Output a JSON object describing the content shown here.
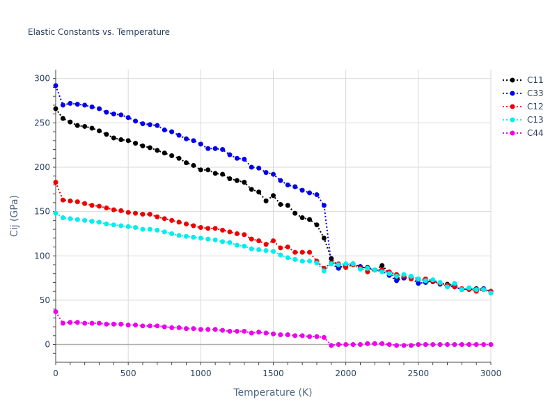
{
  "chart_data": {
    "type": "line",
    "title": "Elastic Constants vs. Temperature",
    "xlabel": "Temperature (K)",
    "ylabel": "Cij (GPa)",
    "xlim": [
      0,
      3000
    ],
    "ylim": [
      -20,
      310
    ],
    "x_ticks": [
      0,
      500,
      1000,
      1500,
      2000,
      2500,
      3000
    ],
    "y_ticks": [
      0,
      50,
      100,
      150,
      200,
      250,
      300
    ],
    "grid": true,
    "legend_position": "top-right",
    "x": [
      0,
      50,
      100,
      150,
      200,
      250,
      300,
      350,
      400,
      450,
      500,
      550,
      600,
      650,
      700,
      750,
      800,
      850,
      900,
      950,
      1000,
      1050,
      1100,
      1150,
      1200,
      1250,
      1300,
      1350,
      1400,
      1450,
      1500,
      1550,
      1600,
      1650,
      1700,
      1750,
      1800,
      1850,
      1900,
      1950,
      2000,
      2050,
      2100,
      2150,
      2200,
      2250,
      2300,
      2350,
      2400,
      2450,
      2500,
      2550,
      2600,
      2650,
      2700,
      2750,
      2800,
      2850,
      2900,
      2950,
      3000
    ],
    "series": [
      {
        "name": "C11",
        "color": "#000000",
        "values": [
          266,
          255,
          251,
          247,
          246,
          244,
          241,
          237,
          233,
          231,
          230,
          227,
          224,
          222,
          219,
          216,
          213,
          210,
          205,
          202,
          197,
          197,
          193,
          192,
          187,
          185,
          183,
          175,
          172,
          162,
          168,
          158,
          157,
          148,
          143,
          141,
          135,
          120,
          97,
          88,
          87,
          91,
          87,
          87,
          84,
          89,
          81,
          75,
          75,
          76,
          74,
          72,
          71,
          69,
          68,
          67,
          62,
          63,
          63,
          62,
          60
        ]
      },
      {
        "name": "C33",
        "color": "#0000ee",
        "values": [
          292,
          270,
          272,
          271,
          270,
          268,
          266,
          262,
          260,
          259,
          256,
          252,
          249,
          248,
          247,
          242,
          240,
          236,
          232,
          230,
          226,
          221,
          221,
          220,
          214,
          210,
          209,
          200,
          199,
          194,
          192,
          185,
          180,
          178,
          174,
          171,
          169,
          157,
          91,
          86,
          90,
          91,
          88,
          86,
          84,
          83,
          78,
          72,
          75,
          75,
          69,
          70,
          72,
          68,
          66,
          65,
          62,
          63,
          61,
          63,
          60
        ]
      },
      {
        "name": "C12",
        "color": "#ee0000",
        "values": [
          183,
          163,
          162,
          161,
          159,
          157,
          156,
          154,
          152,
          151,
          149,
          148,
          147,
          147,
          144,
          142,
          140,
          138,
          136,
          134,
          132,
          131,
          131,
          129,
          127,
          125,
          124,
          119,
          117,
          113,
          117,
          109,
          110,
          104,
          104,
          104,
          94,
          86,
          92,
          91,
          87,
          90,
          86,
          82,
          84,
          84,
          82,
          79,
          77,
          74,
          73,
          74,
          72,
          69,
          67,
          65,
          63,
          62,
          60,
          62,
          60
        ]
      },
      {
        "name": "C13",
        "color": "#00eeee",
        "values": [
          148,
          143,
          142,
          141,
          140,
          139,
          138,
          136,
          135,
          134,
          133,
          132,
          130,
          130,
          129,
          127,
          125,
          123,
          122,
          121,
          120,
          119,
          118,
          116,
          115,
          112,
          111,
          108,
          107,
          106,
          105,
          101,
          98,
          96,
          94,
          94,
          92,
          83,
          91,
          90,
          91,
          91,
          85,
          86,
          84,
          82,
          80,
          77,
          79,
          77,
          74,
          72,
          73,
          70,
          65,
          69,
          62,
          64,
          62,
          62,
          58
        ]
      },
      {
        "name": "C44",
        "color": "#ee00ee",
        "values": [
          37,
          24,
          25,
          25,
          24,
          24,
          24,
          23,
          23,
          23,
          22,
          22,
          21,
          21,
          21,
          20,
          19,
          19,
          18,
          18,
          17,
          17,
          17,
          16,
          15,
          15,
          15,
          13,
          14,
          13,
          12,
          11,
          11,
          10,
          10,
          9,
          9,
          8,
          -1,
          0,
          0,
          0,
          0,
          1,
          1,
          1,
          0,
          -1,
          -1,
          -1,
          0,
          0,
          0,
          0,
          0,
          0,
          0,
          0,
          0,
          0,
          0
        ]
      }
    ]
  }
}
